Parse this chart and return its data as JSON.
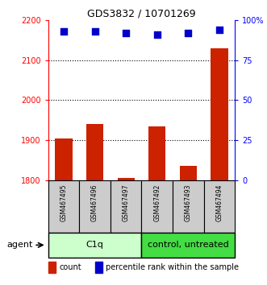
{
  "title": "GDS3832 / 10701269",
  "samples": [
    "GSM467495",
    "GSM467496",
    "GSM467497",
    "GSM467492",
    "GSM467493",
    "GSM467494"
  ],
  "counts": [
    1905,
    1940,
    1805,
    1935,
    1835,
    2130
  ],
  "percentile_ranks": [
    93,
    93,
    92,
    91,
    92,
    94
  ],
  "ylim_left": [
    1800,
    2200
  ],
  "ylim_right": [
    0,
    100
  ],
  "yticks_left": [
    1800,
    1900,
    2000,
    2100,
    2200
  ],
  "yticks_right": [
    0,
    25,
    50,
    75,
    100
  ],
  "bar_color": "#cc2200",
  "dot_color": "#0000cc",
  "group1_label": "C1q",
  "group2_label": "control, untreated",
  "group1_color": "#ccffcc",
  "group2_color": "#44dd44",
  "agent_label": "agent",
  "legend_count_label": "count",
  "legend_pct_label": "percentile rank within the sample",
  "bar_width": 0.55,
  "dot_size": 40,
  "grid_linestyle": "dotted",
  "sample_box_color": "#cccccc",
  "fig_bg": "#ffffff"
}
